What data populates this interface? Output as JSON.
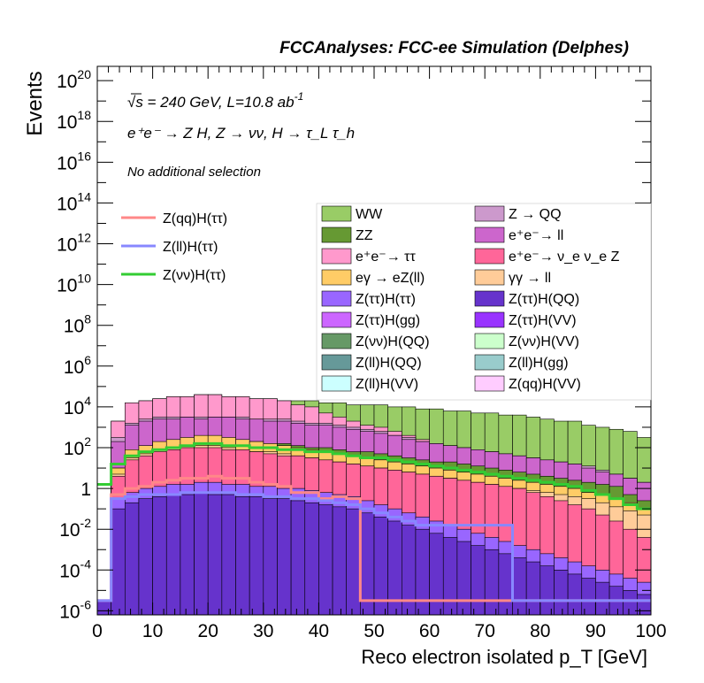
{
  "chart_data": {
    "type": "bar",
    "title": "FCCAnalyses: FCC-ee Simulation (Delphes)",
    "xlabel": "Reco electron isolated p_T [GeV]",
    "ylabel": "Events",
    "xlim": [
      0,
      100
    ],
    "ylim_log10": [
      -6.2,
      20.7
    ],
    "yscale": "log",
    "x_ticks": [
      "0",
      "10",
      "20",
      "30",
      "40",
      "50",
      "60",
      "70",
      "80",
      "90",
      "100"
    ],
    "y_ticks": [
      {
        "base": "10",
        "exp": "20",
        "v": 20
      },
      {
        "base": "10",
        "exp": "18",
        "v": 18
      },
      {
        "base": "10",
        "exp": "16",
        "v": 16
      },
      {
        "base": "10",
        "exp": "14",
        "v": 14
      },
      {
        "base": "10",
        "exp": "12",
        "v": 12
      },
      {
        "base": "10",
        "exp": "10",
        "v": 10
      },
      {
        "base": "10",
        "exp": "8",
        "v": 8
      },
      {
        "base": "10",
        "exp": "6",
        "v": 6
      },
      {
        "base": "10",
        "exp": "4",
        "v": 4
      },
      {
        "base": "10",
        "exp": "2",
        "v": 2
      },
      {
        "base": "1",
        "exp": "",
        "v": 0
      },
      {
        "base": "10",
        "exp": "-2",
        "v": -2
      },
      {
        "base": "10",
        "exp": "-4",
        "v": -4
      },
      {
        "base": "10",
        "exp": "-6",
        "v": -6
      }
    ],
    "annotations": {
      "energy": "√s = 240 GeV, L=10.8 ab",
      "energy_sup": "-1",
      "process": "e⁺e⁻ → Z H, Z → νν, H → τ_L τ_h",
      "selection": "No additional selection"
    },
    "stack_levels_log10": [
      {
        "name": "WW",
        "color": "#99cc66",
        "levels": [
          -5.5,
          3.3,
          4.2,
          4.3,
          4.4,
          4.5,
          4.5,
          4.6,
          4.6,
          4.5,
          4.5,
          4.4,
          4.4,
          4.3,
          4.3,
          4.3,
          4.2,
          4.2,
          4.1,
          4.1,
          4.1,
          4.0,
          4.0,
          3.9,
          3.9,
          3.8,
          3.8,
          3.7,
          3.7,
          3.6,
          3.6,
          3.5,
          3.4,
          3.3,
          3.3,
          3.1,
          3.0,
          2.9,
          2.8,
          2.5
        ]
      },
      {
        "name": "e⁺e⁻→ ττ",
        "color": "#ff99cc",
        "levels": [
          -5.5,
          3.3,
          4.2,
          4.3,
          4.4,
          4.5,
          4.5,
          4.6,
          4.6,
          4.5,
          4.5,
          4.4,
          4.4,
          4.3,
          4.1,
          4.0,
          3.7,
          3.5,
          3.3,
          3.1,
          3.0,
          2.8,
          2.6,
          2.4,
          2.2,
          2.0,
          1.8,
          1.6,
          1.4,
          1.2,
          1.0,
          0.8,
          0.6,
          0.4,
          0.2,
          0.0,
          -0.5,
          -1.0,
          -2.0,
          -3.0
        ]
      },
      {
        "name": "Z → QQ",
        "color": "#cc99cc",
        "levels": [
          -5.5,
          2.5,
          3.2,
          3.4,
          3.5,
          3.5,
          3.5,
          3.5,
          3.5,
          3.5,
          3.5,
          3.4,
          3.4,
          3.4,
          3.3,
          3.2,
          3.2,
          3.1,
          3.0,
          2.9,
          2.8,
          2.6,
          2.5,
          2.3,
          2.2,
          2.1,
          2.0,
          1.9,
          1.8,
          1.7,
          1.6,
          1.5,
          1.4,
          1.3,
          1.2,
          1.1,
          0.9,
          0.7,
          0.5,
          0.3
        ]
      },
      {
        "name": "e⁺e⁻→ ll",
        "color": "#cc66cc",
        "levels": [
          -5.5,
          2.3,
          3.1,
          3.3,
          3.4,
          3.4,
          3.5,
          3.4,
          3.5,
          3.5,
          3.4,
          3.4,
          3.3,
          3.3,
          3.2,
          3.1,
          3.1,
          3.0,
          2.9,
          2.8,
          2.7,
          2.6,
          2.4,
          2.3,
          2.2,
          2.1,
          2.0,
          1.9,
          1.8,
          1.7,
          1.6,
          1.5,
          1.4,
          1.3,
          1.2,
          1.0,
          0.8,
          0.7,
          0.5,
          0.3
        ]
      },
      {
        "name": "ZZ",
        "color": "#669933",
        "levels": [
          -5.5,
          1.0,
          1.8,
          2.0,
          2.2,
          2.3,
          2.4,
          2.4,
          2.4,
          2.4,
          2.3,
          2.3,
          2.2,
          2.2,
          2.1,
          2.0,
          2.0,
          1.9,
          1.8,
          1.8,
          1.7,
          1.6,
          1.5,
          1.4,
          1.3,
          1.3,
          1.2,
          1.1,
          1.0,
          0.9,
          0.8,
          0.7,
          0.6,
          0.5,
          0.4,
          0.3,
          0.2,
          0.1,
          -0.3,
          -0.6
        ]
      },
      {
        "name": "eγ → eZ(ll)",
        "color": "#ffcc66",
        "levels": [
          -5.5,
          1.0,
          1.9,
          2.1,
          2.3,
          2.4,
          2.5,
          2.6,
          2.6,
          2.5,
          2.4,
          2.3,
          2.2,
          2.1,
          2.0,
          1.9,
          1.8,
          1.7,
          1.6,
          1.5,
          1.4,
          1.3,
          1.2,
          1.1,
          1.0,
          0.9,
          0.8,
          0.7,
          0.6,
          0.5,
          0.4,
          0.3,
          0.2,
          0.1,
          0.0,
          -0.2,
          -0.3,
          -0.5,
          -0.7,
          -1.0
        ]
      },
      {
        "name": "γγ → ll",
        "color": "#ffcc99",
        "levels": [
          -5.5,
          0.7,
          1.5,
          1.7,
          1.9,
          2.0,
          2.1,
          2.1,
          2.1,
          2.0,
          1.9,
          1.8,
          1.8,
          1.7,
          1.6,
          1.5,
          1.4,
          1.3,
          1.2,
          1.1,
          1.0,
          0.9,
          0.8,
          0.7,
          0.6,
          0.5,
          0.4,
          0.3,
          0.2,
          0.1,
          0.0,
          -0.1,
          -0.2,
          -0.3,
          -0.4,
          -0.5,
          -0.7,
          -0.9,
          -1.1,
          -1.3
        ]
      },
      {
        "name": "e⁺e⁻→ ν_e ν_e Z",
        "color": "#ff6699",
        "levels": [
          -5.5,
          0.6,
          1.4,
          1.6,
          1.8,
          1.9,
          2.0,
          2.0,
          2.0,
          1.9,
          1.9,
          1.8,
          1.7,
          1.6,
          1.6,
          1.5,
          1.4,
          1.3,
          1.2,
          1.1,
          1.0,
          0.9,
          0.8,
          0.7,
          0.6,
          0.5,
          0.4,
          0.3,
          0.2,
          0.1,
          0.0,
          -0.2,
          -0.4,
          -0.6,
          -0.8,
          -1.0,
          -1.3,
          -1.6,
          -2.0,
          -2.4
        ]
      },
      {
        "name": "Z(ττ)H(ττ)",
        "color": "#9966ff",
        "levels": [
          -5.5,
          -0.5,
          -0.2,
          0.0,
          0.1,
          0.2,
          0.2,
          0.3,
          0.3,
          0.2,
          0.2,
          0.1,
          0.1,
          0.0,
          0.0,
          -0.1,
          -0.2,
          -0.3,
          -0.4,
          -0.6,
          -0.8,
          -1.0,
          -1.2,
          -1.4,
          -1.6,
          -1.8,
          -2.0,
          -2.2,
          -2.4,
          -2.6,
          -2.8,
          -3.0,
          -3.2,
          -3.4,
          -3.6,
          -3.8,
          -4.0,
          -4.2,
          -4.4,
          -4.6
        ]
      },
      {
        "name": "Z(ττ)H(QQ)",
        "color": "#6633cc",
        "levels": [
          -5.5,
          -1.0,
          -0.7,
          -0.5,
          -0.4,
          -0.3,
          -0.3,
          -0.2,
          -0.3,
          -0.3,
          -0.4,
          -0.4,
          -0.5,
          -0.5,
          -0.6,
          -0.7,
          -0.8,
          -0.9,
          -1.0,
          -1.2,
          -1.4,
          -1.6,
          -1.8,
          -2.0,
          -2.2,
          -2.4,
          -2.6,
          -2.8,
          -3.0,
          -3.2,
          -3.4,
          -3.6,
          -3.8,
          -4.0,
          -4.2,
          -4.4,
          -4.6,
          -4.8,
          -5.0,
          -5.2
        ]
      }
    ],
    "bin_width": 2.5,
    "bin_start": 0,
    "lines_log10": [
      {
        "name": "Z(qq)H(ττ)",
        "color": "#ff8888",
        "values": [
          -5.5,
          -0.3,
          0.0,
          0.1,
          0.3,
          0.4,
          0.5,
          0.5,
          0.6,
          0.5,
          0.5,
          0.3,
          0.2,
          0.1,
          -0.2,
          -0.2,
          -0.5,
          -0.4,
          -0.5,
          -5.5,
          -5.5,
          -5.5,
          -5.5,
          -5.5,
          -5.5,
          -5.5,
          -5.5,
          -5.5,
          -5.5,
          -5.5,
          -5.5,
          -5.5,
          -5.5,
          -5.5,
          -5.5,
          -5.5,
          -5.5,
          -5.5,
          -5.5,
          -5.5
        ]
      },
      {
        "name": "Z(ll)H(ττ)",
        "color": "#8888ff",
        "values": [
          -5.5,
          -0.5,
          -0.4,
          -0.3,
          -0.3,
          -0.3,
          -0.2,
          -0.2,
          -0.2,
          -0.2,
          -0.3,
          -0.3,
          -0.4,
          -0.4,
          -0.5,
          -0.5,
          -0.6,
          -0.7,
          -0.8,
          -1.0,
          -1.2,
          -1.4,
          -1.6,
          -1.8,
          -1.8,
          -1.8,
          -1.8,
          -1.8,
          -1.8,
          -1.8,
          -5.5,
          -5.5,
          -5.5,
          -5.5,
          -5.5,
          -5.5,
          -5.5,
          -5.5,
          -5.5,
          -5.5
        ]
      },
      {
        "name": "Z(νν)H(ττ)",
        "color": "#33cc33",
        "values": [
          0.2,
          1.2,
          1.6,
          1.8,
          1.9,
          2.0,
          2.1,
          2.2,
          2.2,
          2.1,
          2.1,
          2.0,
          2.0,
          1.9,
          1.9,
          1.8,
          1.8,
          1.7,
          1.6,
          1.5,
          1.5,
          1.4,
          1.3,
          1.2,
          1.1,
          1.0,
          0.9,
          0.8,
          0.7,
          0.6,
          0.5,
          0.4,
          0.3,
          0.2,
          0.1,
          -0.1,
          -0.3,
          -0.5,
          -0.8,
          -1.0
        ]
      }
    ]
  },
  "legend_lines": [
    {
      "label": "Z(qq)H(ττ)",
      "color": "#ff8888"
    },
    {
      "label": "Z(ll)H(ττ)",
      "color": "#8888ff"
    },
    {
      "label": "Z(νν)H(ττ)",
      "color": "#33cc33"
    }
  ],
  "legend_fills": [
    {
      "label": "WW",
      "color": "#99cc66"
    },
    {
      "label": "Z → QQ",
      "color": "#cc99cc"
    },
    {
      "label": "ZZ",
      "color": "#669933"
    },
    {
      "label": "e⁺e⁻→ ll",
      "color": "#cc66cc"
    },
    {
      "label": "e⁺e⁻→ ττ",
      "color": "#ff99cc"
    },
    {
      "label": "e⁺e⁻→ ν_e ν_e Z",
      "color": "#ff6699"
    },
    {
      "label": "eγ → eZ(ll)",
      "color": "#ffcc66"
    },
    {
      "label": "γγ → ll",
      "color": "#ffcc99"
    },
    {
      "label": "Z(ττ)H(ττ)",
      "color": "#9966ff"
    },
    {
      "label": "Z(ττ)H(QQ)",
      "color": "#6633cc"
    },
    {
      "label": "Z(ττ)H(gg)",
      "color": "#cc66ff"
    },
    {
      "label": "Z(ττ)H(VV)",
      "color": "#9933ff"
    },
    {
      "label": "Z(νν)H(QQ)",
      "color": "#669966"
    },
    {
      "label": "Z(νν)H(VV)",
      "color": "#ccffcc"
    },
    {
      "label": "Z(ll)H(QQ)",
      "color": "#669999"
    },
    {
      "label": "Z(ll)H(gg)",
      "color": "#99cccc"
    },
    {
      "label": "Z(ll)H(VV)",
      "color": "#ccffff"
    },
    {
      "label": "Z(qq)H(VV)",
      "color": "#ffccff"
    }
  ]
}
